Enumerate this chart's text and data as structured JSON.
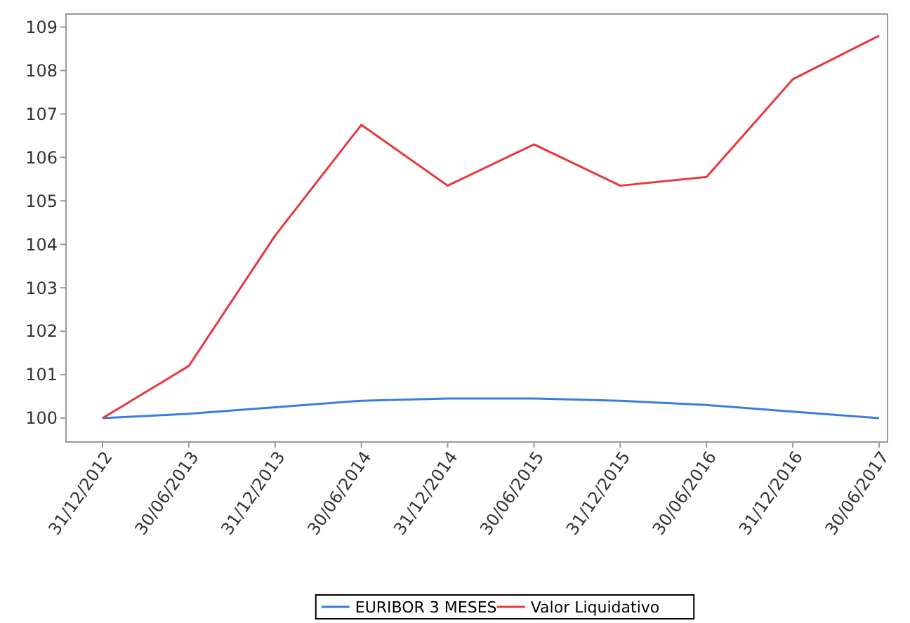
{
  "chart_data": {
    "type": "line",
    "categories": [
      "31/12/2012",
      "30/06/2013",
      "31/12/2013",
      "30/06/2014",
      "31/12/2014",
      "30/06/2015",
      "31/12/2015",
      "30/06/2016",
      "31/12/2016",
      "30/06/2017"
    ],
    "series": [
      {
        "name": "EURIBOR 3 MESES",
        "color": "#3b7ddd",
        "values": [
          100,
          100.1,
          100.25,
          100.4,
          100.45,
          100.45,
          100.4,
          100.3,
          100.15,
          100
        ]
      },
      {
        "name": "Valor Liquidativo",
        "color": "#e8383d",
        "values": [
          100,
          101.2,
          104.2,
          106.75,
          105.35,
          106.3,
          105.35,
          105.55,
          107.8,
          108.8
        ]
      }
    ],
    "ylim": [
      99.45,
      109.3
    ],
    "yticks": [
      100,
      101,
      102,
      103,
      104,
      105,
      106,
      107,
      108,
      109
    ],
    "grid": false,
    "legend": "bottom",
    "marker": "none",
    "line_style": "solid"
  }
}
